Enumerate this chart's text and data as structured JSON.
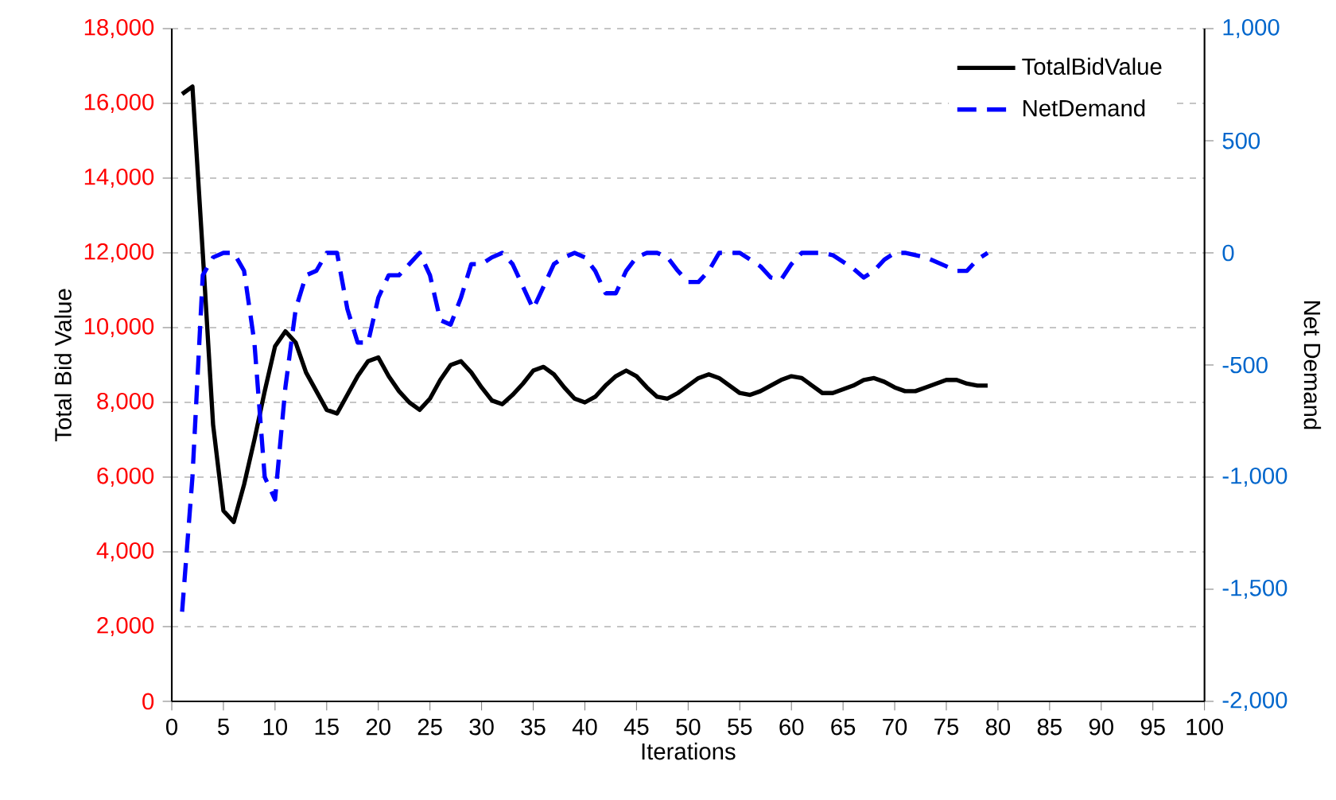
{
  "chart_data": {
    "type": "line",
    "xlabel": "Iterations",
    "ylabel": "Total Bid Value",
    "y2label": "Net Demand",
    "x": [
      1,
      2,
      3,
      4,
      5,
      6,
      7,
      8,
      9,
      10,
      11,
      12,
      13,
      14,
      15,
      16,
      17,
      18,
      19,
      20,
      21,
      22,
      23,
      24,
      25,
      26,
      27,
      28,
      29,
      30,
      31,
      32,
      33,
      34,
      35,
      36,
      37,
      38,
      39,
      40,
      41,
      42,
      43,
      44,
      45,
      46,
      47,
      48,
      49,
      50,
      51,
      52,
      53,
      54,
      55,
      56,
      57,
      58,
      59,
      60,
      61,
      62,
      63,
      64,
      65,
      66,
      67,
      68,
      69,
      70,
      71,
      72,
      73,
      74,
      75,
      76,
      77,
      78,
      79
    ],
    "series": [
      {
        "name": "TotalBidValue",
        "color": "#000000",
        "line_style": "solid",
        "values": [
          16250,
          16450,
          12000,
          7400,
          5100,
          4800,
          5800,
          7000,
          8300,
          9500,
          9900,
          9600,
          8800,
          8300,
          7800,
          7700,
          8200,
          8700,
          9100,
          9200,
          8700,
          8300,
          8000,
          7800,
          8100,
          8600,
          9000,
          9100,
          8800,
          8400,
          8050,
          7950,
          8200,
          8500,
          8850,
          8950,
          8750,
          8400,
          8100,
          8000,
          8150,
          8450,
          8700,
          8850,
          8700,
          8400,
          8150,
          8100,
          8250,
          8450,
          8650,
          8750,
          8650,
          8450,
          8250,
          8200,
          8300,
          8450,
          8600,
          8700,
          8650,
          8450,
          8250,
          8250,
          8350,
          8450,
          8600,
          8650,
          8550,
          8400,
          8300,
          8300,
          8400,
          8500,
          8600,
          8600,
          8500,
          8450,
          8450
        ]
      },
      {
        "name": "NetDemand",
        "color": "#0000ff",
        "line_style": "dashed",
        "axis": "y2",
        "values": [
          -1600,
          -1000,
          -100,
          -20,
          0,
          0,
          -80,
          -400,
          -1000,
          -1100,
          -600,
          -250,
          -100,
          -80,
          0,
          0,
          -250,
          -400,
          -400,
          -200,
          -100,
          -100,
          -50,
          0,
          -100,
          -300,
          -320,
          -200,
          -50,
          -50,
          -20,
          0,
          -50,
          -150,
          -250,
          -150,
          -50,
          -20,
          0,
          -20,
          -80,
          -180,
          -180,
          -80,
          -20,
          0,
          0,
          -20,
          -80,
          -130,
          -130,
          -80,
          0,
          0,
          0,
          -30,
          -60,
          -110,
          -120,
          -50,
          0,
          0,
          0,
          -10,
          -40,
          -70,
          -110,
          -80,
          -30,
          0,
          0,
          -10,
          -20,
          -40,
          -60,
          -80,
          -80,
          -30,
          0
        ]
      }
    ],
    "xlim": [
      0,
      100
    ],
    "xticks": [
      0,
      5,
      10,
      15,
      20,
      25,
      30,
      35,
      40,
      45,
      50,
      55,
      60,
      65,
      70,
      75,
      80,
      85,
      90,
      95,
      100
    ],
    "ylim": [
      0,
      18000
    ],
    "yticks": [
      {
        "value": 0,
        "label": "0"
      },
      {
        "value": 2000,
        "label": "2,000"
      },
      {
        "value": 4000,
        "label": "4,000"
      },
      {
        "value": 6000,
        "label": "6,000"
      },
      {
        "value": 8000,
        "label": "8,000"
      },
      {
        "value": 10000,
        "label": "10,000"
      },
      {
        "value": 12000,
        "label": "12,000"
      },
      {
        "value": 14000,
        "label": "14,000"
      },
      {
        "value": 16000,
        "label": "16,000"
      },
      {
        "value": 18000,
        "label": "18,000"
      }
    ],
    "y2lim": [
      -2000,
      1000
    ],
    "y2ticks": [
      {
        "value": -2000,
        "label": "-2,000"
      },
      {
        "value": -1500,
        "label": "-1,500"
      },
      {
        "value": -1000,
        "label": "-1,000"
      },
      {
        "value": -500,
        "label": "-500"
      },
      {
        "value": 0,
        "label": "0"
      },
      {
        "value": 500,
        "label": "500"
      },
      {
        "value": 1000,
        "label": "1,000"
      }
    ],
    "grid": "y",
    "legend": "top right",
    "marker": "none"
  }
}
